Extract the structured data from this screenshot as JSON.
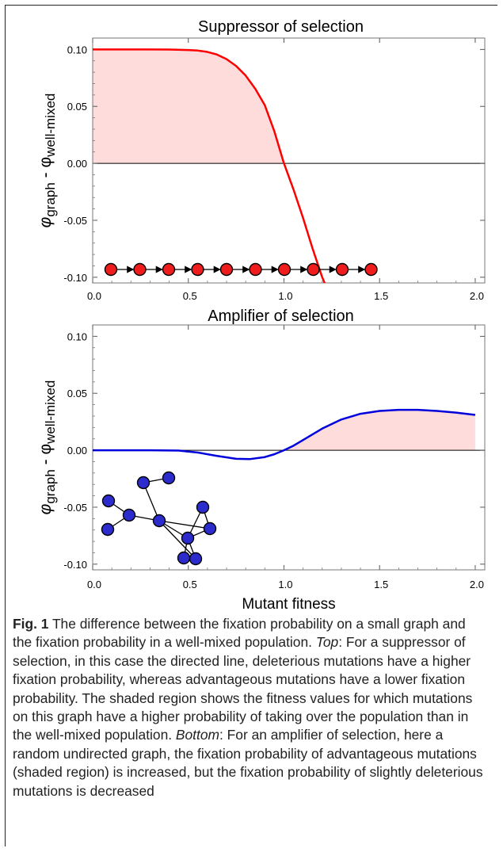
{
  "chart_data": [
    {
      "type": "area",
      "title": "Suppressor of selection",
      "xlabel": "",
      "ylabel_base": "φ",
      "ylabel_sub1": "graph",
      "ylabel_mid": " - φ",
      "ylabel_sub2": "well-mixed",
      "xlim": [
        0.0,
        2.05
      ],
      "ylim": [
        -0.105,
        0.11
      ],
      "xticks": [
        "0.0",
        "0.5",
        "1.0",
        "1.5",
        "2.0"
      ],
      "yticks": [
        "0.10",
        "0.05",
        "0.00",
        "-0.05",
        "-0.10"
      ],
      "series": [
        {
          "color": "#ff0000",
          "shaded_positive": true,
          "x": [
            0.0,
            0.2,
            0.3,
            0.4,
            0.5,
            0.55,
            0.6,
            0.65,
            0.7,
            0.75,
            0.8,
            0.85,
            0.9,
            0.95,
            1.0,
            1.05,
            1.1,
            1.15,
            1.2,
            1.22
          ],
          "y": [
            0.1,
            0.1,
            0.1,
            0.0999,
            0.0995,
            0.099,
            0.0978,
            0.0955,
            0.0915,
            0.0855,
            0.077,
            0.0655,
            0.051,
            0.028,
            0.0,
            -0.023,
            -0.048,
            -0.075,
            -0.1,
            -0.108
          ]
        }
      ],
      "inset": {
        "kind": "directed-line",
        "nodes": 10,
        "node_color": "#ee1c1c"
      }
    },
    {
      "type": "area",
      "title": "Amplifier of selection",
      "xlabel": "Mutant fitness",
      "ylabel_base": "φ",
      "ylabel_sub1": "graph",
      "ylabel_mid": " - φ",
      "ylabel_sub2": "well-mixed",
      "xlim": [
        0.0,
        2.05
      ],
      "ylim": [
        -0.105,
        0.11
      ],
      "xticks": [
        "0.0",
        "0.5",
        "1.0",
        "1.5",
        "2.0"
      ],
      "yticks": [
        "0.10",
        "0.05",
        "0.00",
        "-0.05",
        "-0.10"
      ],
      "series": [
        {
          "color": "#0000dd",
          "shaded_positive": true,
          "x": [
            0.0,
            0.3,
            0.45,
            0.55,
            0.65,
            0.75,
            0.82,
            0.9,
            0.95,
            1.0,
            1.05,
            1.1,
            1.2,
            1.3,
            1.4,
            1.5,
            1.6,
            1.7,
            1.8,
            1.9,
            2.0
          ],
          "y": [
            0.0,
            0.0,
            -0.0003,
            -0.002,
            -0.005,
            -0.0075,
            -0.0078,
            -0.006,
            -0.0035,
            0.0,
            0.004,
            0.009,
            0.019,
            0.027,
            0.032,
            0.0345,
            0.0355,
            0.0355,
            0.0345,
            0.033,
            0.031
          ]
        }
      ],
      "inset": {
        "kind": "random-undirected-graph",
        "nodes": 11,
        "node_color": "#2c2ccc"
      }
    }
  ],
  "caption": {
    "fig_label": "Fig. 1",
    "part1": " The difference between the fixation probability on a small graph and the fixation probability in a well-mixed population. ",
    "top_label": "Top",
    "part2": ": For a suppressor of selection, in this case the directed line, deleterious mutations have a higher fixation probability, whereas advantageous mutations have a lower fixation probability. The shaded region shows the fitness values for which mutations on this graph have a higher probability of taking over the population than in the well-mixed population. ",
    "bottom_label": "Bottom",
    "part3": ": For an amplifier of selection, here a random undirected graph, the fixation probability of advantageous mutations (shaded region) is increased, but the fixation probability of slightly deleterious mutations is decreased"
  }
}
